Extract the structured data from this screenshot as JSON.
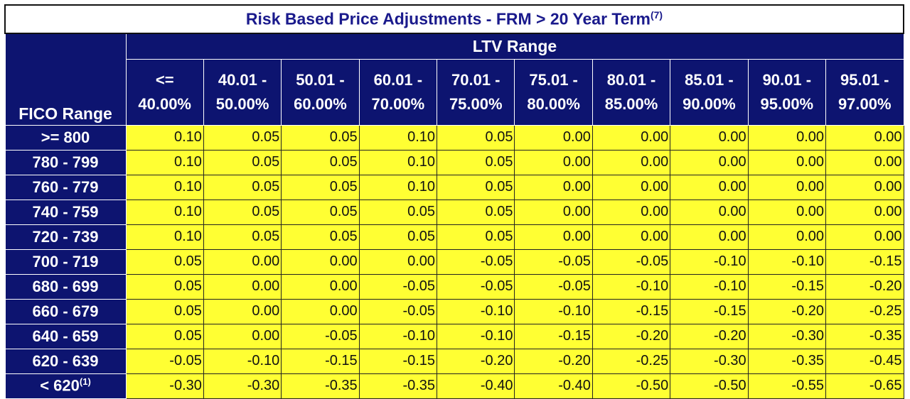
{
  "title": "Risk Based Price Adjustments - FRM > 20 Year Term",
  "title_sup": "(7)",
  "ltv_header": "LTV Range",
  "fico_header": "FICO Range",
  "columns": [
    {
      "l1": "<=",
      "l2": "40.00%"
    },
    {
      "l1": "40.01 -",
      "l2": "50.00%"
    },
    {
      "l1": "50.01 -",
      "l2": "60.00%"
    },
    {
      "l1": "60.01 -",
      "l2": "70.00%"
    },
    {
      "l1": "70.01 -",
      "l2": "75.00%"
    },
    {
      "l1": "75.01 -",
      "l2": "80.00%"
    },
    {
      "l1": "80.01 -",
      "l2": "85.00%"
    },
    {
      "l1": "85.01 -",
      "l2": "90.00%"
    },
    {
      "l1": "90.01 -",
      "l2": "95.00%"
    },
    {
      "l1": "95.01 -",
      "l2": "97.00%"
    }
  ],
  "rows": [
    {
      "fico": ">= 800",
      "sup": "",
      "values": [
        "0.10",
        "0.05",
        "0.05",
        "0.10",
        "0.05",
        "0.00",
        "0.00",
        "0.00",
        "0.00",
        "0.00"
      ]
    },
    {
      "fico": "780 - 799",
      "sup": "",
      "values": [
        "0.10",
        "0.05",
        "0.05",
        "0.10",
        "0.05",
        "0.00",
        "0.00",
        "0.00",
        "0.00",
        "0.00"
      ]
    },
    {
      "fico": "760 - 779",
      "sup": "",
      "values": [
        "0.10",
        "0.05",
        "0.05",
        "0.10",
        "0.05",
        "0.00",
        "0.00",
        "0.00",
        "0.00",
        "0.00"
      ]
    },
    {
      "fico": "740 - 759",
      "sup": "",
      "values": [
        "0.10",
        "0.05",
        "0.05",
        "0.05",
        "0.05",
        "0.00",
        "0.00",
        "0.00",
        "0.00",
        "0.00"
      ]
    },
    {
      "fico": "720 - 739",
      "sup": "",
      "values": [
        "0.10",
        "0.05",
        "0.05",
        "0.05",
        "0.05",
        "0.00",
        "0.00",
        "0.00",
        "0.00",
        "0.00"
      ]
    },
    {
      "fico": "700 - 719",
      "sup": "",
      "values": [
        "0.05",
        "0.00",
        "0.00",
        "0.00",
        "-0.05",
        "-0.05",
        "-0.05",
        "-0.10",
        "-0.10",
        "-0.15"
      ]
    },
    {
      "fico": "680 - 699",
      "sup": "",
      "values": [
        "0.05",
        "0.00",
        "0.00",
        "-0.05",
        "-0.05",
        "-0.05",
        "-0.10",
        "-0.10",
        "-0.15",
        "-0.20"
      ]
    },
    {
      "fico": "660 - 679",
      "sup": "",
      "values": [
        "0.05",
        "0.00",
        "0.00",
        "-0.05",
        "-0.10",
        "-0.10",
        "-0.15",
        "-0.15",
        "-0.20",
        "-0.25"
      ]
    },
    {
      "fico": "640 - 659",
      "sup": "",
      "values": [
        "0.05",
        "0.00",
        "-0.05",
        "-0.10",
        "-0.10",
        "-0.15",
        "-0.20",
        "-0.20",
        "-0.30",
        "-0.35"
      ]
    },
    {
      "fico": "620 - 639",
      "sup": "",
      "values": [
        "-0.05",
        "-0.10",
        "-0.15",
        "-0.15",
        "-0.20",
        "-0.20",
        "-0.25",
        "-0.30",
        "-0.35",
        "-0.45"
      ]
    },
    {
      "fico": "< 620",
      "sup": "(1)",
      "values": [
        "-0.30",
        "-0.30",
        "-0.35",
        "-0.35",
        "-0.40",
        "-0.40",
        "-0.50",
        "-0.50",
        "-0.55",
        "-0.65"
      ]
    }
  ],
  "colors": {
    "header_bg": "#0d1470",
    "cell_bg": "#ffff33",
    "title_text": "#1a1a8c"
  }
}
